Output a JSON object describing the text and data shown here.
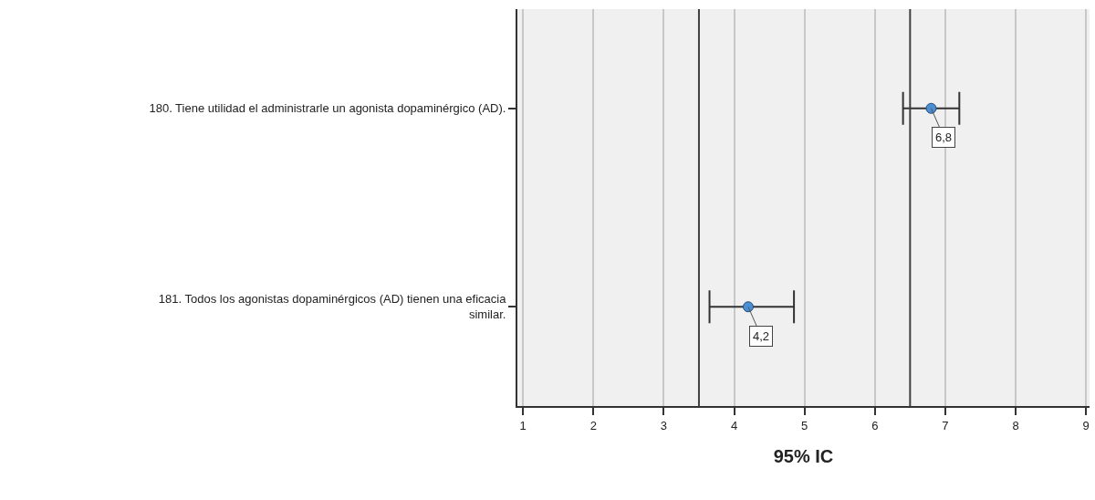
{
  "chart_data": {
    "type": "scatter",
    "orientation": "horizontal",
    "xlabel": "95% IC",
    "categories": [
      "180. Tiene utilidad el administrarle un agonista dopaminérgico (AD).",
      "181. Todos los agonistas dopaminérgicos (AD) tienen una eficacia\nsimilar."
    ],
    "series": [
      {
        "color": "#4a8fd4",
        "values": [
          6.8,
          4.2
        ],
        "errors": [
          [
            6.4,
            7.2
          ],
          [
            3.65,
            4.85
          ]
        ],
        "value_labels": [
          "6,8",
          "4,2"
        ]
      }
    ],
    "xlim": [
      0.92,
      9.05
    ],
    "xticks": [
      1,
      2,
      3,
      4,
      5,
      6,
      7,
      8,
      9
    ],
    "ref_lines": [
      {
        "axis": "x",
        "value": 3.5,
        "color": "#404040"
      },
      {
        "axis": "x",
        "value": 6.5,
        "color": "#404040"
      }
    ],
    "grid": "x",
    "marker": "circle"
  }
}
